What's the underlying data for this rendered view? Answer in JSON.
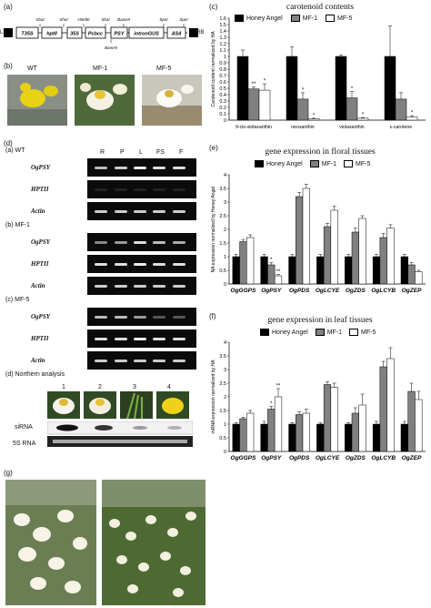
{
  "panel_labels": {
    "a": "(a)",
    "b": "(b)",
    "c": "(c)",
    "d": "(d)",
    "e": "(e)",
    "f": "(f)",
    "g": "(g)"
  },
  "construct": {
    "left": "LB",
    "right": "RB",
    "boxes": [
      "T35S",
      "hptII",
      "35S",
      "Pcbcc",
      "PSY",
      "intronGUS",
      "AS4"
    ],
    "sites": [
      "XbaI",
      "XhoI",
      "HindIII",
      "XbaI",
      "BamHI",
      "SpeI",
      "SpeI",
      "BamHI"
    ]
  },
  "photos_b": {
    "labels": [
      "WT",
      "MF-1",
      "MF-5"
    ]
  },
  "gel": {
    "lanes": [
      "R",
      "P",
      "L",
      "FS",
      "F"
    ],
    "groups": [
      {
        "label": "(a) WT",
        "rows": [
          "OgPSY",
          "HPTII",
          "Actin"
        ]
      },
      {
        "label": "(b) MF-1",
        "rows": [
          "OgPSY",
          "HPTII",
          "Actin"
        ]
      },
      {
        "label": "(c) MF-5",
        "rows": [
          "OgPSY",
          "HPTII",
          "Actin"
        ]
      }
    ],
    "northern": {
      "label": "(d) Northern analysis",
      "numbers": [
        "1",
        "2",
        "3",
        "4"
      ],
      "rows": [
        "siRNA",
        "5S RNA"
      ]
    }
  },
  "legend": {
    "honey": "Honey Angel",
    "mf1": "MF-1",
    "mf5": "MF-5"
  },
  "chart_data": [
    {
      "type": "bar",
      "panel": "c",
      "title": "carotenoid contents",
      "ylabel": "Carotenoid content normalized by HA",
      "ylim": [
        0,
        1.6
      ],
      "yticks": [
        "0",
        "0.1",
        "0.2",
        "0.3",
        "0.4",
        "0.5",
        "0.6",
        "0.7",
        "0.8",
        "0.9",
        "1",
        "1.1",
        "1.2",
        "1.3",
        "1.4",
        "1.5",
        "1.6"
      ],
      "categories": [
        "9-cis-violaxanthin",
        "neoxanthin",
        "violaxanthin",
        "ε-carotene"
      ],
      "series": [
        {
          "name": "Honey Angel",
          "values": [
            1.0,
            1.0,
            1.0,
            1.0
          ],
          "err": [
            0.1,
            0.15,
            0.02,
            0.48
          ]
        },
        {
          "name": "MF-1",
          "values": [
            0.49,
            0.33,
            0.35,
            0.33
          ],
          "err": [
            0.03,
            0.1,
            0.1,
            0.1
          ]
        },
        {
          "name": "MF-5",
          "values": [
            0.47,
            0.02,
            0.03,
            0.05
          ],
          "err": [
            0.1,
            0.01,
            0.01,
            0.02
          ]
        }
      ],
      "marks": [
        [
          "",
          "**",
          "*"
        ],
        [
          "",
          "*",
          "*"
        ],
        [
          "",
          "*",
          "*"
        ],
        [
          "",
          "",
          "*"
        ]
      ]
    },
    {
      "type": "bar",
      "panel": "e",
      "title": "gene expression in floral tissues",
      "ylabel": "NA expression normalized by Honey Angel",
      "ylim": [
        0,
        4
      ],
      "yticks": [
        "0",
        "0.5",
        "1",
        "1.5",
        "2",
        "2.5",
        "3",
        "3.5",
        "4"
      ],
      "categories": [
        "OgGGPS",
        "OgPSY",
        "OgPDS",
        "OgLCYE",
        "OgZDS",
        "OgLCYB",
        "OgZEP"
      ],
      "series": [
        {
          "name": "Honey Angel",
          "values": [
            1.0,
            1.0,
            1.0,
            1.0,
            1.0,
            1.0,
            1.0
          ],
          "err": [
            0.08,
            0.08,
            0.08,
            0.08,
            0.08,
            0.08,
            0.08
          ]
        },
        {
          "name": "MF-1",
          "values": [
            1.55,
            0.7,
            3.2,
            2.1,
            1.9,
            1.7,
            0.7
          ],
          "err": [
            0.08,
            0.08,
            0.15,
            0.12,
            0.15,
            0.15,
            0.08
          ]
        },
        {
          "name": "MF-5",
          "values": [
            1.7,
            0.3,
            3.5,
            2.7,
            2.4,
            2.05,
            0.45
          ],
          "err": [
            0.1,
            0.05,
            0.15,
            0.15,
            0.1,
            0.12,
            0.05
          ]
        }
      ],
      "marks": [
        [
          "",
          "",
          ""
        ],
        [
          "",
          "*",
          "**"
        ],
        [
          "",
          "",
          ""
        ],
        [
          "",
          "",
          ""
        ],
        [
          "",
          "",
          ""
        ],
        [
          "",
          "",
          ""
        ],
        [
          "",
          "",
          ""
        ]
      ]
    },
    {
      "type": "bar",
      "panel": "f",
      "title": "gene expression in leaf tissues",
      "ylabel": "mRNA expression normalized by HA",
      "ylim": [
        0,
        4
      ],
      "yticks": [
        "0",
        "0.5",
        "1",
        "1.5",
        "2",
        "2.5",
        "3",
        "3.5",
        "4"
      ],
      "categories": [
        "OgGGPS",
        "OgPSY",
        "OgPDS",
        "OgLCYE",
        "OgZDS",
        "OgLCYB",
        "OgZEP"
      ],
      "series": [
        {
          "name": "Honey Angel",
          "values": [
            1.0,
            1.0,
            1.0,
            1.0,
            1.0,
            1.0,
            1.0
          ],
          "err": [
            0.05,
            0.1,
            0.05,
            0.05,
            0.05,
            0.1,
            0.1
          ]
        },
        {
          "name": "MF-1",
          "values": [
            1.2,
            1.55,
            1.35,
            2.45,
            1.4,
            3.1,
            2.2
          ],
          "err": [
            0.05,
            0.1,
            0.1,
            0.1,
            0.2,
            0.2,
            0.3
          ]
        },
        {
          "name": "MF-5",
          "values": [
            1.4,
            2.0,
            1.4,
            2.35,
            1.7,
            3.4,
            1.9
          ],
          "err": [
            0.1,
            0.3,
            0.15,
            0.15,
            0.4,
            0.4,
            0.3
          ]
        }
      ],
      "marks": [
        [
          "",
          "",
          ""
        ],
        [
          "",
          "*",
          "**"
        ],
        [
          "",
          "",
          ""
        ],
        [
          "",
          "",
          ""
        ],
        [
          "",
          "",
          ""
        ],
        [
          "",
          "",
          ""
        ],
        [
          "",
          "",
          ""
        ]
      ]
    }
  ],
  "colors": {
    "honey": "#000000",
    "mf1": "#808080",
    "mf5": "#ffffff",
    "plant_green": "#4a6b2a"
  }
}
